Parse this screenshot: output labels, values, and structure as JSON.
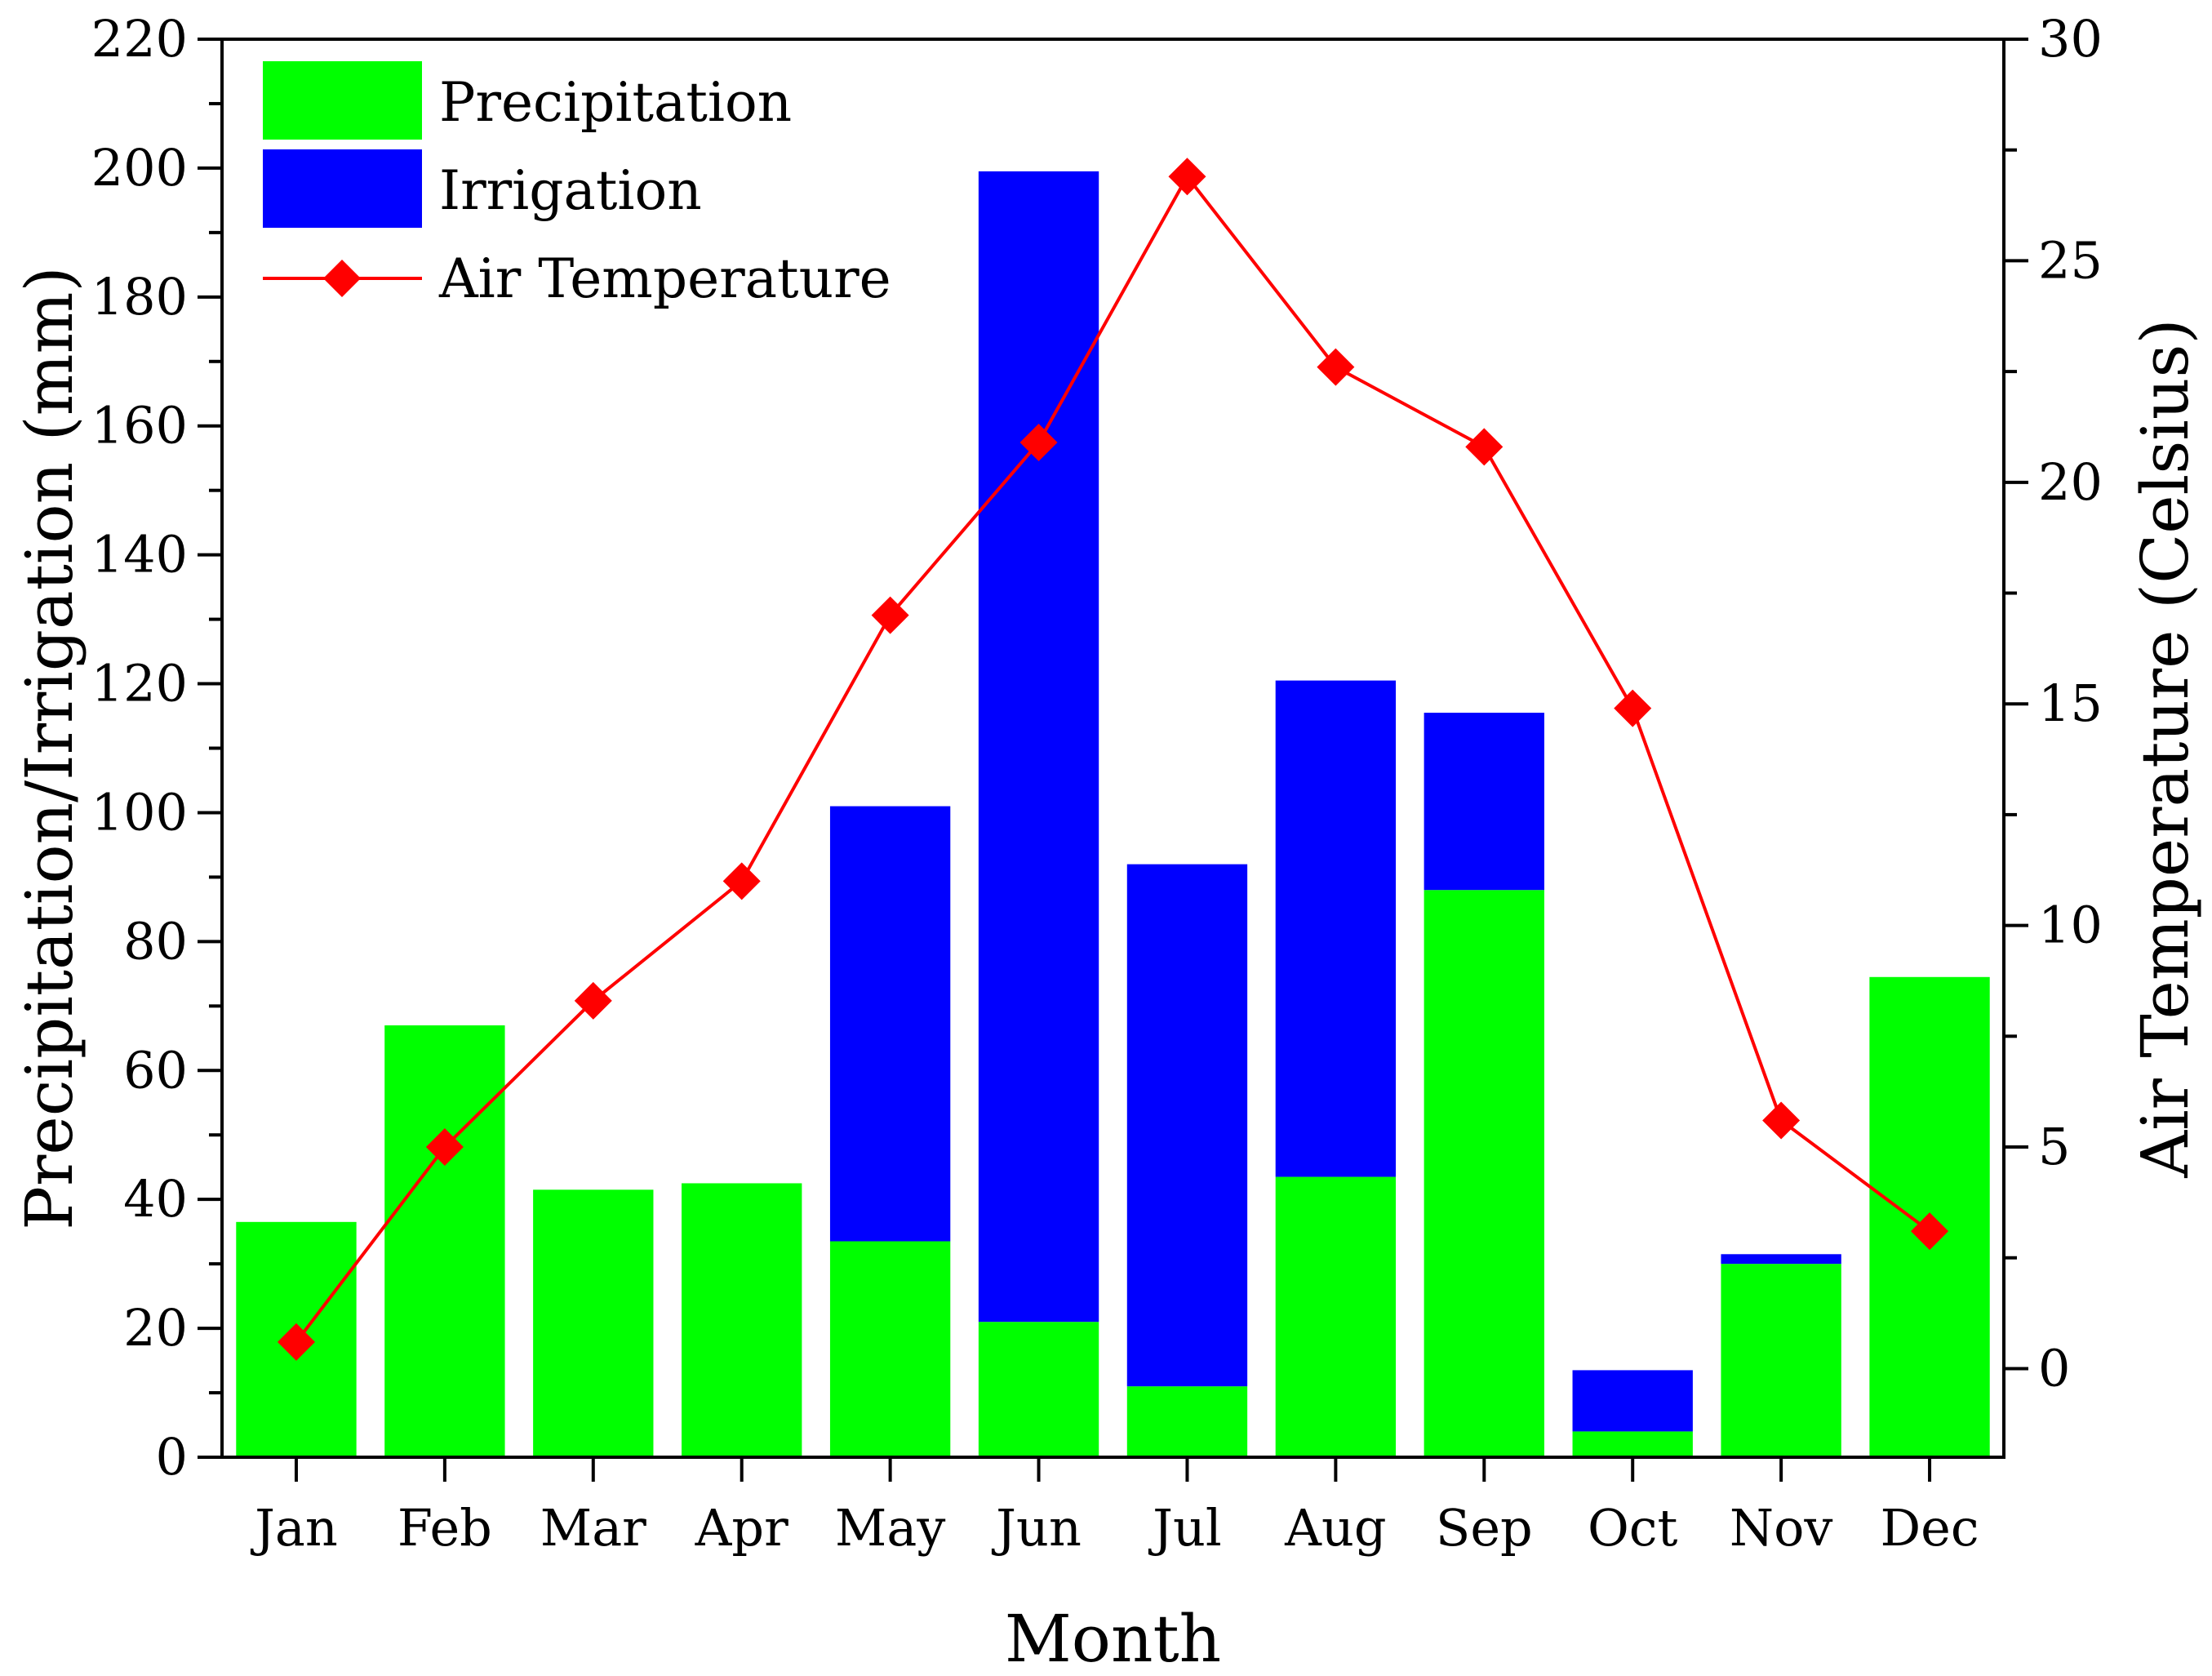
{
  "chart_data": {
    "type": "bar",
    "stacked": true,
    "dual_axis": true,
    "categories": [
      "Jan",
      "Feb",
      "Mar",
      "Apr",
      "May",
      "Jun",
      "Jul",
      "Aug",
      "Sep",
      "Oct",
      "Nov",
      "Dec"
    ],
    "series": [
      {
        "name": "Precipitation",
        "type": "bar",
        "axis": "left",
        "color": "#00ff00",
        "values": [
          36.5,
          67,
          41.5,
          42.5,
          33.5,
          21,
          11,
          43.5,
          88,
          4,
          30,
          74.5
        ]
      },
      {
        "name": "Irrigation",
        "type": "bar",
        "axis": "left",
        "color": "#0000ff",
        "values": [
          0,
          0,
          0,
          0,
          67.5,
          178.5,
          81,
          77,
          27.5,
          9.5,
          1.5,
          0
        ]
      },
      {
        "name": "Air Temperature",
        "type": "line",
        "marker": "diamond",
        "axis": "right",
        "color": "#ff0000",
        "values": [
          0.6,
          5.0,
          8.3,
          11.0,
          17.0,
          20.9,
          26.9,
          22.6,
          20.8,
          14.9,
          5.6,
          3.1
        ]
      }
    ],
    "xlabel": "Month",
    "ylabel": "Precipitation/Irrigation (mm)",
    "y2label": "Air Temperature (Celsius)",
    "ylim": [
      0,
      220
    ],
    "y2lim": [
      -2,
      30
    ],
    "yticks": [
      "0",
      "20",
      "40",
      "60",
      "80",
      "100",
      "120",
      "140",
      "160",
      "180",
      "200",
      "220"
    ],
    "y2ticks": [
      "0",
      "5",
      "10",
      "15",
      "20",
      "25",
      "30"
    ],
    "grid": false,
    "legend": "top-left"
  }
}
